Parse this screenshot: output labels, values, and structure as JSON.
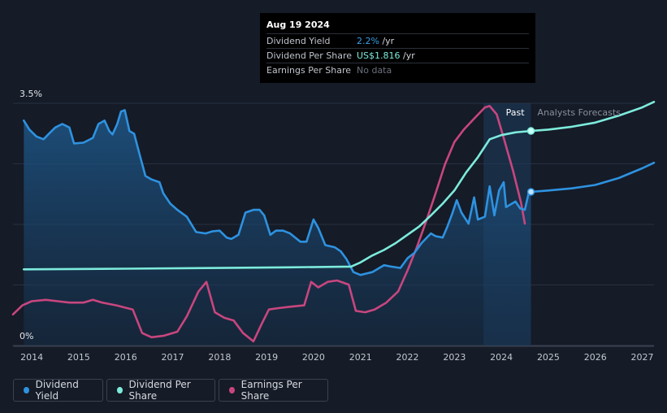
{
  "tooltip": {
    "date": "Aug 19 2024",
    "rows": [
      {
        "label": "Dividend Yield",
        "value": "2.2%",
        "unit": " /yr"
      },
      {
        "label": "Dividend Per Share",
        "value": "US$1.816",
        "unit": " /yr"
      },
      {
        "label": "Earnings Per Share",
        "value": "No data",
        "unit": ""
      }
    ]
  },
  "legend": {
    "yield": "Dividend Yield",
    "dps": "Dividend Per Share",
    "eps": "Earnings Per Share"
  },
  "colors": {
    "background": "#151b27",
    "yield": "#2e92e0",
    "dps": "#7debdc",
    "eps": "#c8467e",
    "past_band": "#1e3c5e"
  },
  "chart_data": {
    "type": "line",
    "x_ticks": [
      "2014",
      "2015",
      "2016",
      "2017",
      "2018",
      "2019",
      "2020",
      "2021",
      "2022",
      "2023",
      "2024",
      "2025",
      "2026",
      "2027"
    ],
    "y_tick_labels": [
      "3.5%",
      "0%"
    ],
    "ylim": [
      0,
      3.5
    ],
    "xlim": [
      2013.6,
      2027.25
    ],
    "past_label": "Past",
    "forecast_label": "Analysts Forecasts",
    "past_start": 2023.62,
    "past_end": 2024.63,
    "series": [
      {
        "name": "Dividend Yield",
        "unit": "%",
        "points": [
          [
            2013.83,
            3.25
          ],
          [
            2013.95,
            3.12
          ],
          [
            2014.1,
            3.02
          ],
          [
            2014.25,
            2.98
          ],
          [
            2014.35,
            3.05
          ],
          [
            2014.5,
            3.15
          ],
          [
            2014.65,
            3.2
          ],
          [
            2014.8,
            3.15
          ],
          [
            2014.9,
            2.92
          ],
          [
            2015.1,
            2.93
          ],
          [
            2015.3,
            3.0
          ],
          [
            2015.42,
            3.2
          ],
          [
            2015.55,
            3.25
          ],
          [
            2015.65,
            3.1
          ],
          [
            2015.72,
            3.05
          ],
          [
            2015.82,
            3.2
          ],
          [
            2015.9,
            3.38
          ],
          [
            2015.98,
            3.4
          ],
          [
            2016.08,
            3.1
          ],
          [
            2016.18,
            3.06
          ],
          [
            2016.3,
            2.75
          ],
          [
            2016.42,
            2.45
          ],
          [
            2016.55,
            2.4
          ],
          [
            2016.72,
            2.36
          ],
          [
            2016.8,
            2.2
          ],
          [
            2016.95,
            2.05
          ],
          [
            2017.1,
            1.96
          ],
          [
            2017.3,
            1.86
          ],
          [
            2017.5,
            1.64
          ],
          [
            2017.7,
            1.62
          ],
          [
            2017.85,
            1.65
          ],
          [
            2018.0,
            1.66
          ],
          [
            2018.15,
            1.56
          ],
          [
            2018.25,
            1.54
          ],
          [
            2018.4,
            1.6
          ],
          [
            2018.55,
            1.92
          ],
          [
            2018.72,
            1.96
          ],
          [
            2018.85,
            1.96
          ],
          [
            2018.95,
            1.88
          ],
          [
            2019.08,
            1.6
          ],
          [
            2019.2,
            1.66
          ],
          [
            2019.35,
            1.66
          ],
          [
            2019.5,
            1.62
          ],
          [
            2019.72,
            1.5
          ],
          [
            2019.85,
            1.5
          ],
          [
            2020.0,
            1.82
          ],
          [
            2020.1,
            1.7
          ],
          [
            2020.25,
            1.45
          ],
          [
            2020.45,
            1.42
          ],
          [
            2020.58,
            1.36
          ],
          [
            2020.7,
            1.25
          ],
          [
            2020.85,
            1.06
          ],
          [
            2021.0,
            1.02
          ],
          [
            2021.12,
            1.04
          ],
          [
            2021.25,
            1.06
          ],
          [
            2021.5,
            1.16
          ],
          [
            2021.65,
            1.14
          ],
          [
            2021.85,
            1.12
          ],
          [
            2022.0,
            1.26
          ],
          [
            2022.15,
            1.34
          ],
          [
            2022.3,
            1.48
          ],
          [
            2022.5,
            1.62
          ],
          [
            2022.6,
            1.58
          ],
          [
            2022.75,
            1.56
          ],
          [
            2022.85,
            1.72
          ],
          [
            2022.95,
            1.9
          ],
          [
            2023.05,
            2.1
          ],
          [
            2023.15,
            1.92
          ],
          [
            2023.3,
            1.76
          ],
          [
            2023.42,
            2.14
          ],
          [
            2023.5,
            1.82
          ],
          [
            2023.65,
            1.86
          ],
          [
            2023.75,
            2.3
          ],
          [
            2023.85,
            1.88
          ],
          [
            2023.95,
            2.24
          ],
          [
            2024.05,
            2.36
          ],
          [
            2024.1,
            2.0
          ],
          [
            2024.3,
            2.08
          ],
          [
            2024.4,
            1.98
          ],
          [
            2024.5,
            1.96
          ],
          [
            2024.58,
            2.2
          ],
          [
            2024.63,
            2.24
          ]
        ]
      },
      {
        "name": "Dividend Yield forecast",
        "unit": "%",
        "points": [
          [
            2024.63,
            2.22
          ],
          [
            2025.0,
            2.24
          ],
          [
            2025.5,
            2.27
          ],
          [
            2026.0,
            2.32
          ],
          [
            2026.5,
            2.42
          ],
          [
            2027.0,
            2.56
          ],
          [
            2027.25,
            2.64
          ]
        ]
      },
      {
        "name": "Dividend Per Share",
        "points": [
          [
            2013.83,
            1.1
          ],
          [
            2016.0,
            1.11
          ],
          [
            2018.0,
            1.12
          ],
          [
            2019.5,
            1.13
          ],
          [
            2020.8,
            1.14
          ],
          [
            2021.0,
            1.2
          ],
          [
            2021.25,
            1.3
          ],
          [
            2021.5,
            1.38
          ],
          [
            2021.75,
            1.48
          ],
          [
            2022.0,
            1.6
          ],
          [
            2022.25,
            1.72
          ],
          [
            2022.5,
            1.88
          ],
          [
            2022.75,
            2.05
          ],
          [
            2023.0,
            2.24
          ],
          [
            2023.25,
            2.5
          ],
          [
            2023.5,
            2.72
          ],
          [
            2023.75,
            2.98
          ],
          [
            2024.0,
            3.04
          ],
          [
            2024.3,
            3.08
          ],
          [
            2024.63,
            3.1
          ]
        ]
      },
      {
        "name": "Dividend Per Share forecast",
        "points": [
          [
            2024.63,
            3.1
          ],
          [
            2025.0,
            3.12
          ],
          [
            2025.5,
            3.16
          ],
          [
            2026.0,
            3.22
          ],
          [
            2026.5,
            3.32
          ],
          [
            2027.0,
            3.44
          ],
          [
            2027.25,
            3.52
          ]
        ]
      },
      {
        "name": "Earnings Per Share",
        "points": [
          [
            2013.6,
            0.45
          ],
          [
            2013.8,
            0.58
          ],
          [
            2014.0,
            0.64
          ],
          [
            2014.3,
            0.66
          ],
          [
            2014.55,
            0.64
          ],
          [
            2014.8,
            0.62
          ],
          [
            2015.1,
            0.62
          ],
          [
            2015.3,
            0.66
          ],
          [
            2015.5,
            0.62
          ],
          [
            2015.8,
            0.58
          ],
          [
            2016.15,
            0.52
          ],
          [
            2016.35,
            0.18
          ],
          [
            2016.55,
            0.12
          ],
          [
            2016.8,
            0.14
          ],
          [
            2017.1,
            0.2
          ],
          [
            2017.3,
            0.42
          ],
          [
            2017.55,
            0.78
          ],
          [
            2017.72,
            0.92
          ],
          [
            2017.9,
            0.48
          ],
          [
            2018.1,
            0.4
          ],
          [
            2018.3,
            0.36
          ],
          [
            2018.5,
            0.18
          ],
          [
            2018.72,
            0.06
          ],
          [
            2018.9,
            0.32
          ],
          [
            2019.05,
            0.52
          ],
          [
            2019.25,
            0.54
          ],
          [
            2019.5,
            0.56
          ],
          [
            2019.8,
            0.58
          ],
          [
            2019.95,
            0.92
          ],
          [
            2020.1,
            0.84
          ],
          [
            2020.3,
            0.92
          ],
          [
            2020.5,
            0.94
          ],
          [
            2020.75,
            0.88
          ],
          [
            2020.9,
            0.5
          ],
          [
            2021.1,
            0.48
          ],
          [
            2021.3,
            0.52
          ],
          [
            2021.55,
            0.62
          ],
          [
            2021.8,
            0.78
          ],
          [
            2022.0,
            1.08
          ],
          [
            2022.2,
            1.42
          ],
          [
            2022.4,
            1.8
          ],
          [
            2022.6,
            2.2
          ],
          [
            2022.8,
            2.62
          ],
          [
            2023.0,
            2.94
          ],
          [
            2023.2,
            3.12
          ],
          [
            2023.45,
            3.3
          ],
          [
            2023.65,
            3.44
          ],
          [
            2023.75,
            3.46
          ],
          [
            2023.9,
            3.34
          ],
          [
            2024.05,
            3.0
          ],
          [
            2024.25,
            2.52
          ],
          [
            2024.42,
            2.06
          ],
          [
            2024.5,
            1.76
          ]
        ]
      }
    ]
  }
}
